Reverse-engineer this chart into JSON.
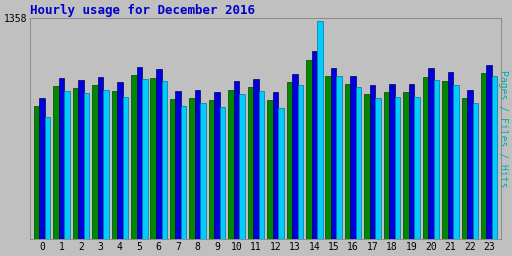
{
  "title": "Hourly usage for December 2016",
  "title_color": "#0000cc",
  "background_color": "#c0c0c0",
  "plot_bg_color": "#c0c0c0",
  "hours": [
    0,
    1,
    2,
    3,
    4,
    5,
    6,
    7,
    8,
    9,
    10,
    11,
    12,
    13,
    14,
    15,
    16,
    17,
    18,
    19,
    20,
    21,
    22,
    23
  ],
  "pages": [
    820,
    940,
    930,
    950,
    910,
    1010,
    990,
    860,
    870,
    855,
    920,
    935,
    855,
    965,
    1100,
    1005,
    955,
    895,
    905,
    905,
    1000,
    975,
    870,
    1020
  ],
  "files": [
    870,
    990,
    980,
    1000,
    965,
    1060,
    1045,
    910,
    920,
    905,
    970,
    985,
    905,
    1015,
    1155,
    1055,
    1005,
    945,
    955,
    955,
    1050,
    1025,
    920,
    1070
  ],
  "hits": [
    750,
    910,
    900,
    915,
    875,
    985,
    975,
    820,
    840,
    810,
    895,
    910,
    805,
    950,
    1340,
    1005,
    935,
    870,
    875,
    875,
    980,
    945,
    835,
    1005
  ],
  "ylim": [
    0,
    1358
  ],
  "ytick_label": "1358",
  "ylabel": "Pages / Files / Hits",
  "bar_colors": {
    "pages": "#008800",
    "files": "#0000dd",
    "hits": "#00ccff"
  },
  "bar_edge_colors": {
    "pages": "#004400",
    "files": "#000066",
    "hits": "#007799"
  },
  "ylabel_color": "#00aaaa",
  "grid_color": "#aaaaaa",
  "font_family": "monospace"
}
